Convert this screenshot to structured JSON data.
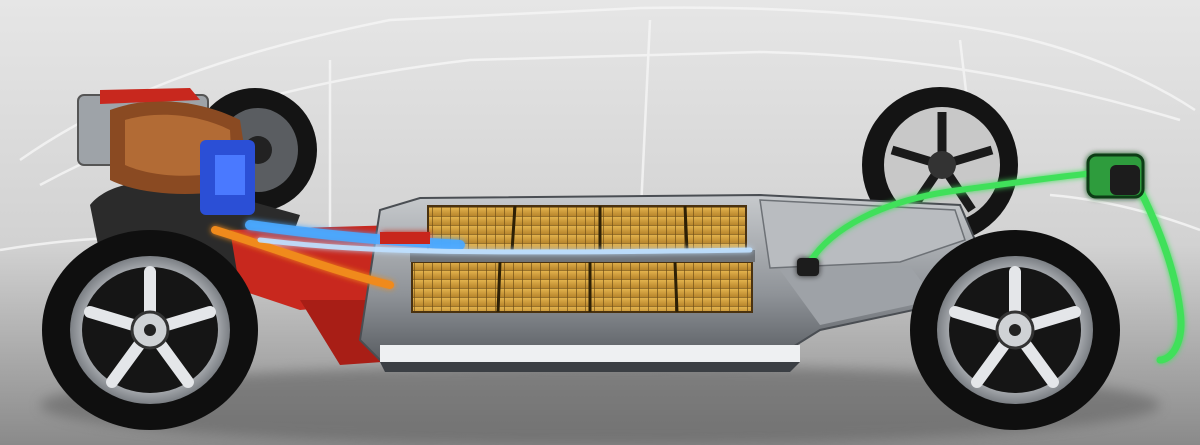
{
  "scene": {
    "subject": "electric-vehicle-skateboard-chassis",
    "colors": {
      "background": "#dcdcdc",
      "floor": "#8e8e8e",
      "body_outline": "#f4f4f4",
      "tray": "#a9adb2",
      "tray_dark": "#5d6166",
      "cells": "#d7a645",
      "cell_grid": "#6b4a14",
      "motor_red": "#c8281e",
      "cable_orange": "#f08a1a",
      "cable_blue": "#4aa8ff",
      "charging_green": "#3fe05a",
      "tire": "#111111",
      "rim": "#dadde0"
    }
  }
}
